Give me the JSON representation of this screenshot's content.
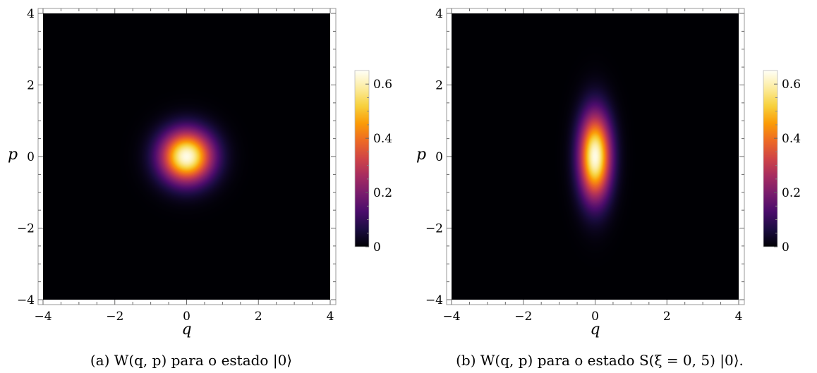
{
  "chart_data": [
    {
      "type": "heatmap",
      "panel": "a",
      "function": "gaussian",
      "sigma_q": 0.5,
      "sigma_p": 0.5,
      "peak": 0.637,
      "xlim": [
        -4,
        4
      ],
      "ylim": [
        -4,
        4
      ],
      "xlabel": "q",
      "ylabel": "p",
      "x_ticks": [
        -4,
        -2,
        0,
        2,
        4
      ],
      "y_ticks": [
        -4,
        -2,
        0,
        2,
        4
      ],
      "colorbar": {
        "min": 0,
        "max": 0.65,
        "ticks": [
          0,
          0.2,
          0.4,
          0.6
        ],
        "tick_labels": [
          "0",
          "0.2",
          "0.4",
          "0.6"
        ]
      },
      "caption": "(a) W(q, p) para o estado |0⟩"
    },
    {
      "type": "heatmap",
      "panel": "b",
      "function": "gaussian",
      "sigma_q": 0.303,
      "sigma_p": 0.824,
      "peak": 0.637,
      "xlim": [
        -4,
        4
      ],
      "ylim": [
        -4,
        4
      ],
      "xlabel": "q",
      "ylabel": "p",
      "x_ticks": [
        -4,
        -2,
        0,
        2,
        4
      ],
      "y_ticks": [
        -4,
        -2,
        0,
        2,
        4
      ],
      "colorbar": {
        "min": 0,
        "max": 0.65,
        "ticks": [
          0,
          0.2,
          0.4,
          0.6
        ],
        "tick_labels": [
          "0",
          "0.2",
          "0.4",
          "0.6"
        ]
      },
      "caption": "(b) W(q, p) para o estado S(ξ = 0, 5) |0⟩."
    }
  ],
  "colormap": {
    "stops": [
      [
        0.0,
        "#000004"
      ],
      [
        0.1,
        "#1b0c41"
      ],
      [
        0.2,
        "#4a0c6b"
      ],
      [
        0.3,
        "#781c6d"
      ],
      [
        0.4,
        "#a52c60"
      ],
      [
        0.5,
        "#cf4446"
      ],
      [
        0.6,
        "#ed6925"
      ],
      [
        0.7,
        "#fb9b06"
      ],
      [
        0.8,
        "#f7d13d"
      ],
      [
        0.9,
        "#fcec9f"
      ],
      [
        1.0,
        "#fffff7"
      ]
    ]
  }
}
